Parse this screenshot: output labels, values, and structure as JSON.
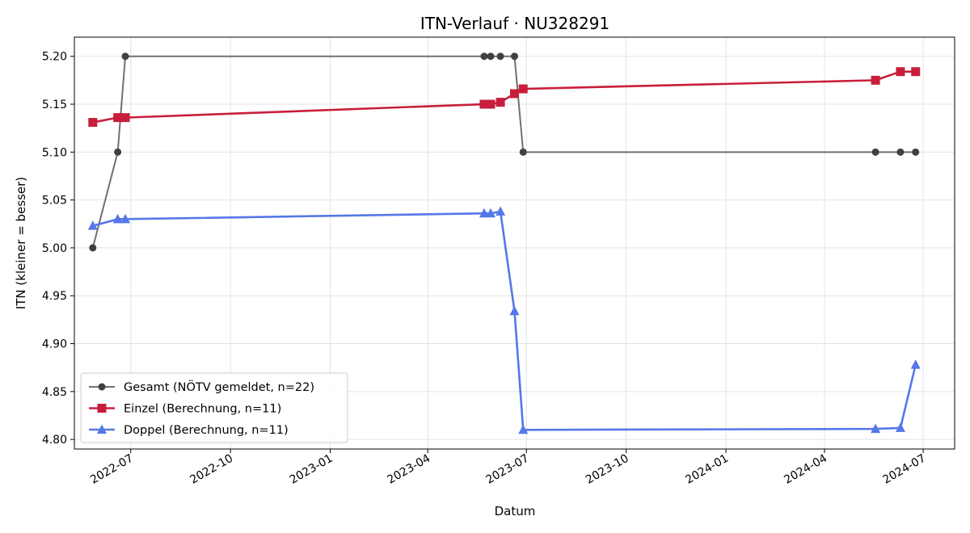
{
  "chart_data": {
    "type": "line",
    "title": "ITN-Verlauf · NU328291",
    "xlabel": "Datum",
    "ylabel": "ITN  (kleiner = besser)",
    "xlim": [
      "2022-05-10",
      "2024-07-30"
    ],
    "ylim": [
      4.79,
      5.22
    ],
    "x_ticks": [
      {
        "date": "2022-07-01",
        "label": "2022-07"
      },
      {
        "date": "2022-10-01",
        "label": "2022-10"
      },
      {
        "date": "2023-01-01",
        "label": "2023-01"
      },
      {
        "date": "2023-04-01",
        "label": "2023-04"
      },
      {
        "date": "2023-07-01",
        "label": "2023-07"
      },
      {
        "date": "2023-10-01",
        "label": "2023-10"
      },
      {
        "date": "2024-01-01",
        "label": "2024-01"
      },
      {
        "date": "2024-04-01",
        "label": "2024-04"
      },
      {
        "date": "2024-07-01",
        "label": "2024-07"
      }
    ],
    "y_ticks": [
      {
        "value": 4.8,
        "label": "4.80"
      },
      {
        "value": 4.85,
        "label": "4.85"
      },
      {
        "value": 4.9,
        "label": "4.90"
      },
      {
        "value": 4.95,
        "label": "4.95"
      },
      {
        "value": 5.0,
        "label": "5.00"
      },
      {
        "value": 5.05,
        "label": "5.05"
      },
      {
        "value": 5.1,
        "label": "5.10"
      },
      {
        "value": 5.15,
        "label": "5.15"
      },
      {
        "value": 5.2,
        "label": "5.20"
      }
    ],
    "grid": true,
    "legend_position": "lower-left",
    "series": [
      {
        "name": "Gesamt (NÖTV gemeldet, n=22)",
        "color": "#707070",
        "marker_color": "#404040",
        "marker": "circle",
        "points": [
          {
            "x": "2022-05-27",
            "y": 5.0
          },
          {
            "x": "2022-06-19",
            "y": 5.1
          },
          {
            "x": "2022-06-26",
            "y": 5.2
          },
          {
            "x": "2023-05-23",
            "y": 5.2
          },
          {
            "x": "2023-05-29",
            "y": 5.2
          },
          {
            "x": "2023-06-07",
            "y": 5.2
          },
          {
            "x": "2023-06-20",
            "y": 5.2
          },
          {
            "x": "2023-06-28",
            "y": 5.1
          },
          {
            "x": "2024-05-18",
            "y": 5.1
          },
          {
            "x": "2024-06-10",
            "y": 5.1
          },
          {
            "x": "2024-06-24",
            "y": 5.1
          }
        ]
      },
      {
        "name": "Einzel (Berechnung, n=11)",
        "color": "#c81e3c",
        "marker_color": "#c81e3c",
        "marker": "square",
        "points": [
          {
            "x": "2022-05-27",
            "y": 5.131
          },
          {
            "x": "2022-06-19",
            "y": 5.136
          },
          {
            "x": "2022-06-26",
            "y": 5.136
          },
          {
            "x": "2023-05-23",
            "y": 5.15
          },
          {
            "x": "2023-05-29",
            "y": 5.15
          },
          {
            "x": "2023-06-07",
            "y": 5.152
          },
          {
            "x": "2023-06-20",
            "y": 5.161
          },
          {
            "x": "2023-06-28",
            "y": 5.166
          },
          {
            "x": "2024-05-18",
            "y": 5.175
          },
          {
            "x": "2024-06-10",
            "y": 5.184
          },
          {
            "x": "2024-06-24",
            "y": 5.184
          }
        ]
      },
      {
        "name": "Doppel (Berechnung, n=11)",
        "color": "#5577e8",
        "marker_color": "#5577e8",
        "marker": "triangle",
        "points": [
          {
            "x": "2022-05-27",
            "y": 5.023
          },
          {
            "x": "2022-06-19",
            "y": 5.03
          },
          {
            "x": "2022-06-26",
            "y": 5.03
          },
          {
            "x": "2023-05-23",
            "y": 5.036
          },
          {
            "x": "2023-05-29",
            "y": 5.036
          },
          {
            "x": "2023-06-07",
            "y": 5.038
          },
          {
            "x": "2023-06-20",
            "y": 4.934
          },
          {
            "x": "2023-06-28",
            "y": 4.81
          },
          {
            "x": "2024-05-18",
            "y": 4.811
          },
          {
            "x": "2024-06-10",
            "y": 4.812
          },
          {
            "x": "2024-06-24",
            "y": 4.878
          }
        ]
      }
    ]
  }
}
